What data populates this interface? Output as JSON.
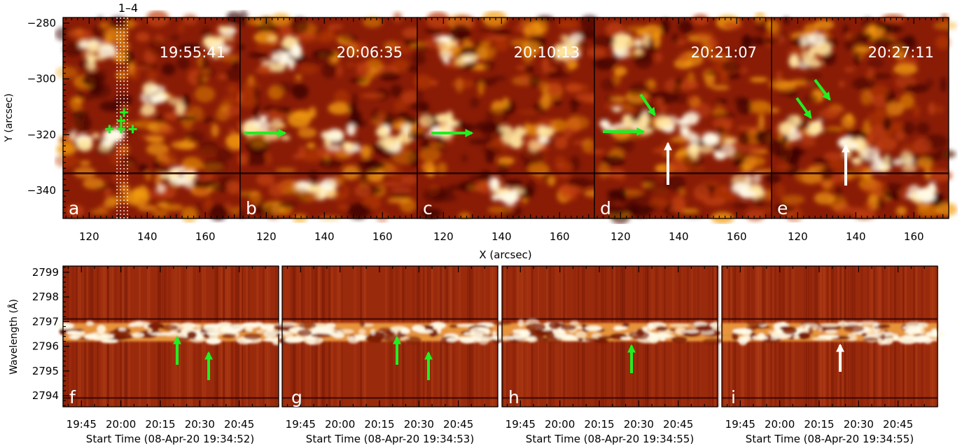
{
  "top_row": {
    "panels": [
      {
        "letter": "a",
        "time": "19:55:41"
      },
      {
        "letter": "b",
        "time": "20:06:35"
      },
      {
        "letter": "c",
        "time": "20:10:13"
      },
      {
        "letter": "d",
        "time": "20:21:07"
      },
      {
        "letter": "e",
        "time": "20:27:11"
      }
    ],
    "slit_label": "1–4",
    "ylabel": "Y (arcsec)",
    "xlabel": "X (arcsec)",
    "yticks": [
      "−280",
      "−300",
      "−320",
      "−340"
    ],
    "ytick_values": [
      -280,
      -300,
      -320,
      -340
    ],
    "ylim": [
      -350,
      -278
    ],
    "xticks": [
      "120",
      "140",
      "160"
    ],
    "xtick_values": [
      120,
      140,
      160
    ],
    "xlim": [
      111,
      172
    ],
    "cross_markers": [
      [
        132,
        -312
      ],
      [
        131,
        -315
      ],
      [
        131,
        -318
      ],
      [
        127,
        -318
      ],
      [
        135,
        -318
      ]
    ]
  },
  "bottom_row": {
    "panels": [
      {
        "letter": "f",
        "start_time": "Start Time (08-Apr-20 19:34:52)",
        "white_arrow": false
      },
      {
        "letter": "g",
        "start_time": "Start Time (08-Apr-20 19:34:53)",
        "white_arrow": false
      },
      {
        "letter": "h",
        "start_time": "Start Time (08-Apr-20 19:34:55)",
        "white_arrow": false
      },
      {
        "letter": "i",
        "start_time": "Start Time (08-Apr-20 19:34:55)",
        "white_arrow": true
      }
    ],
    "ylabel": "Wavelength (Å)",
    "yticks": [
      "2799",
      "2798",
      "2797",
      "2796",
      "2795",
      "2794"
    ],
    "ytick_values": [
      2799,
      2798,
      2797,
      2796,
      2795,
      2794
    ],
    "ylim": [
      2793.55,
      2799.25
    ],
    "xticks": [
      "19:45",
      "20:00",
      "20:15",
      "20:30",
      "20:45"
    ],
    "xtick_minutes": [
      0,
      15,
      30,
      45,
      60
    ],
    "xlim_minutes": [
      -7,
      75
    ]
  },
  "colors": {
    "map_base": "#8a1c06",
    "map_dark": "#3a0600",
    "map_bright": "#ffe6a0",
    "map_white": "#fffbe8",
    "green_arrow": "#22ee22",
    "white_arrow": "#ffffff",
    "label_text": "#ffffff"
  }
}
